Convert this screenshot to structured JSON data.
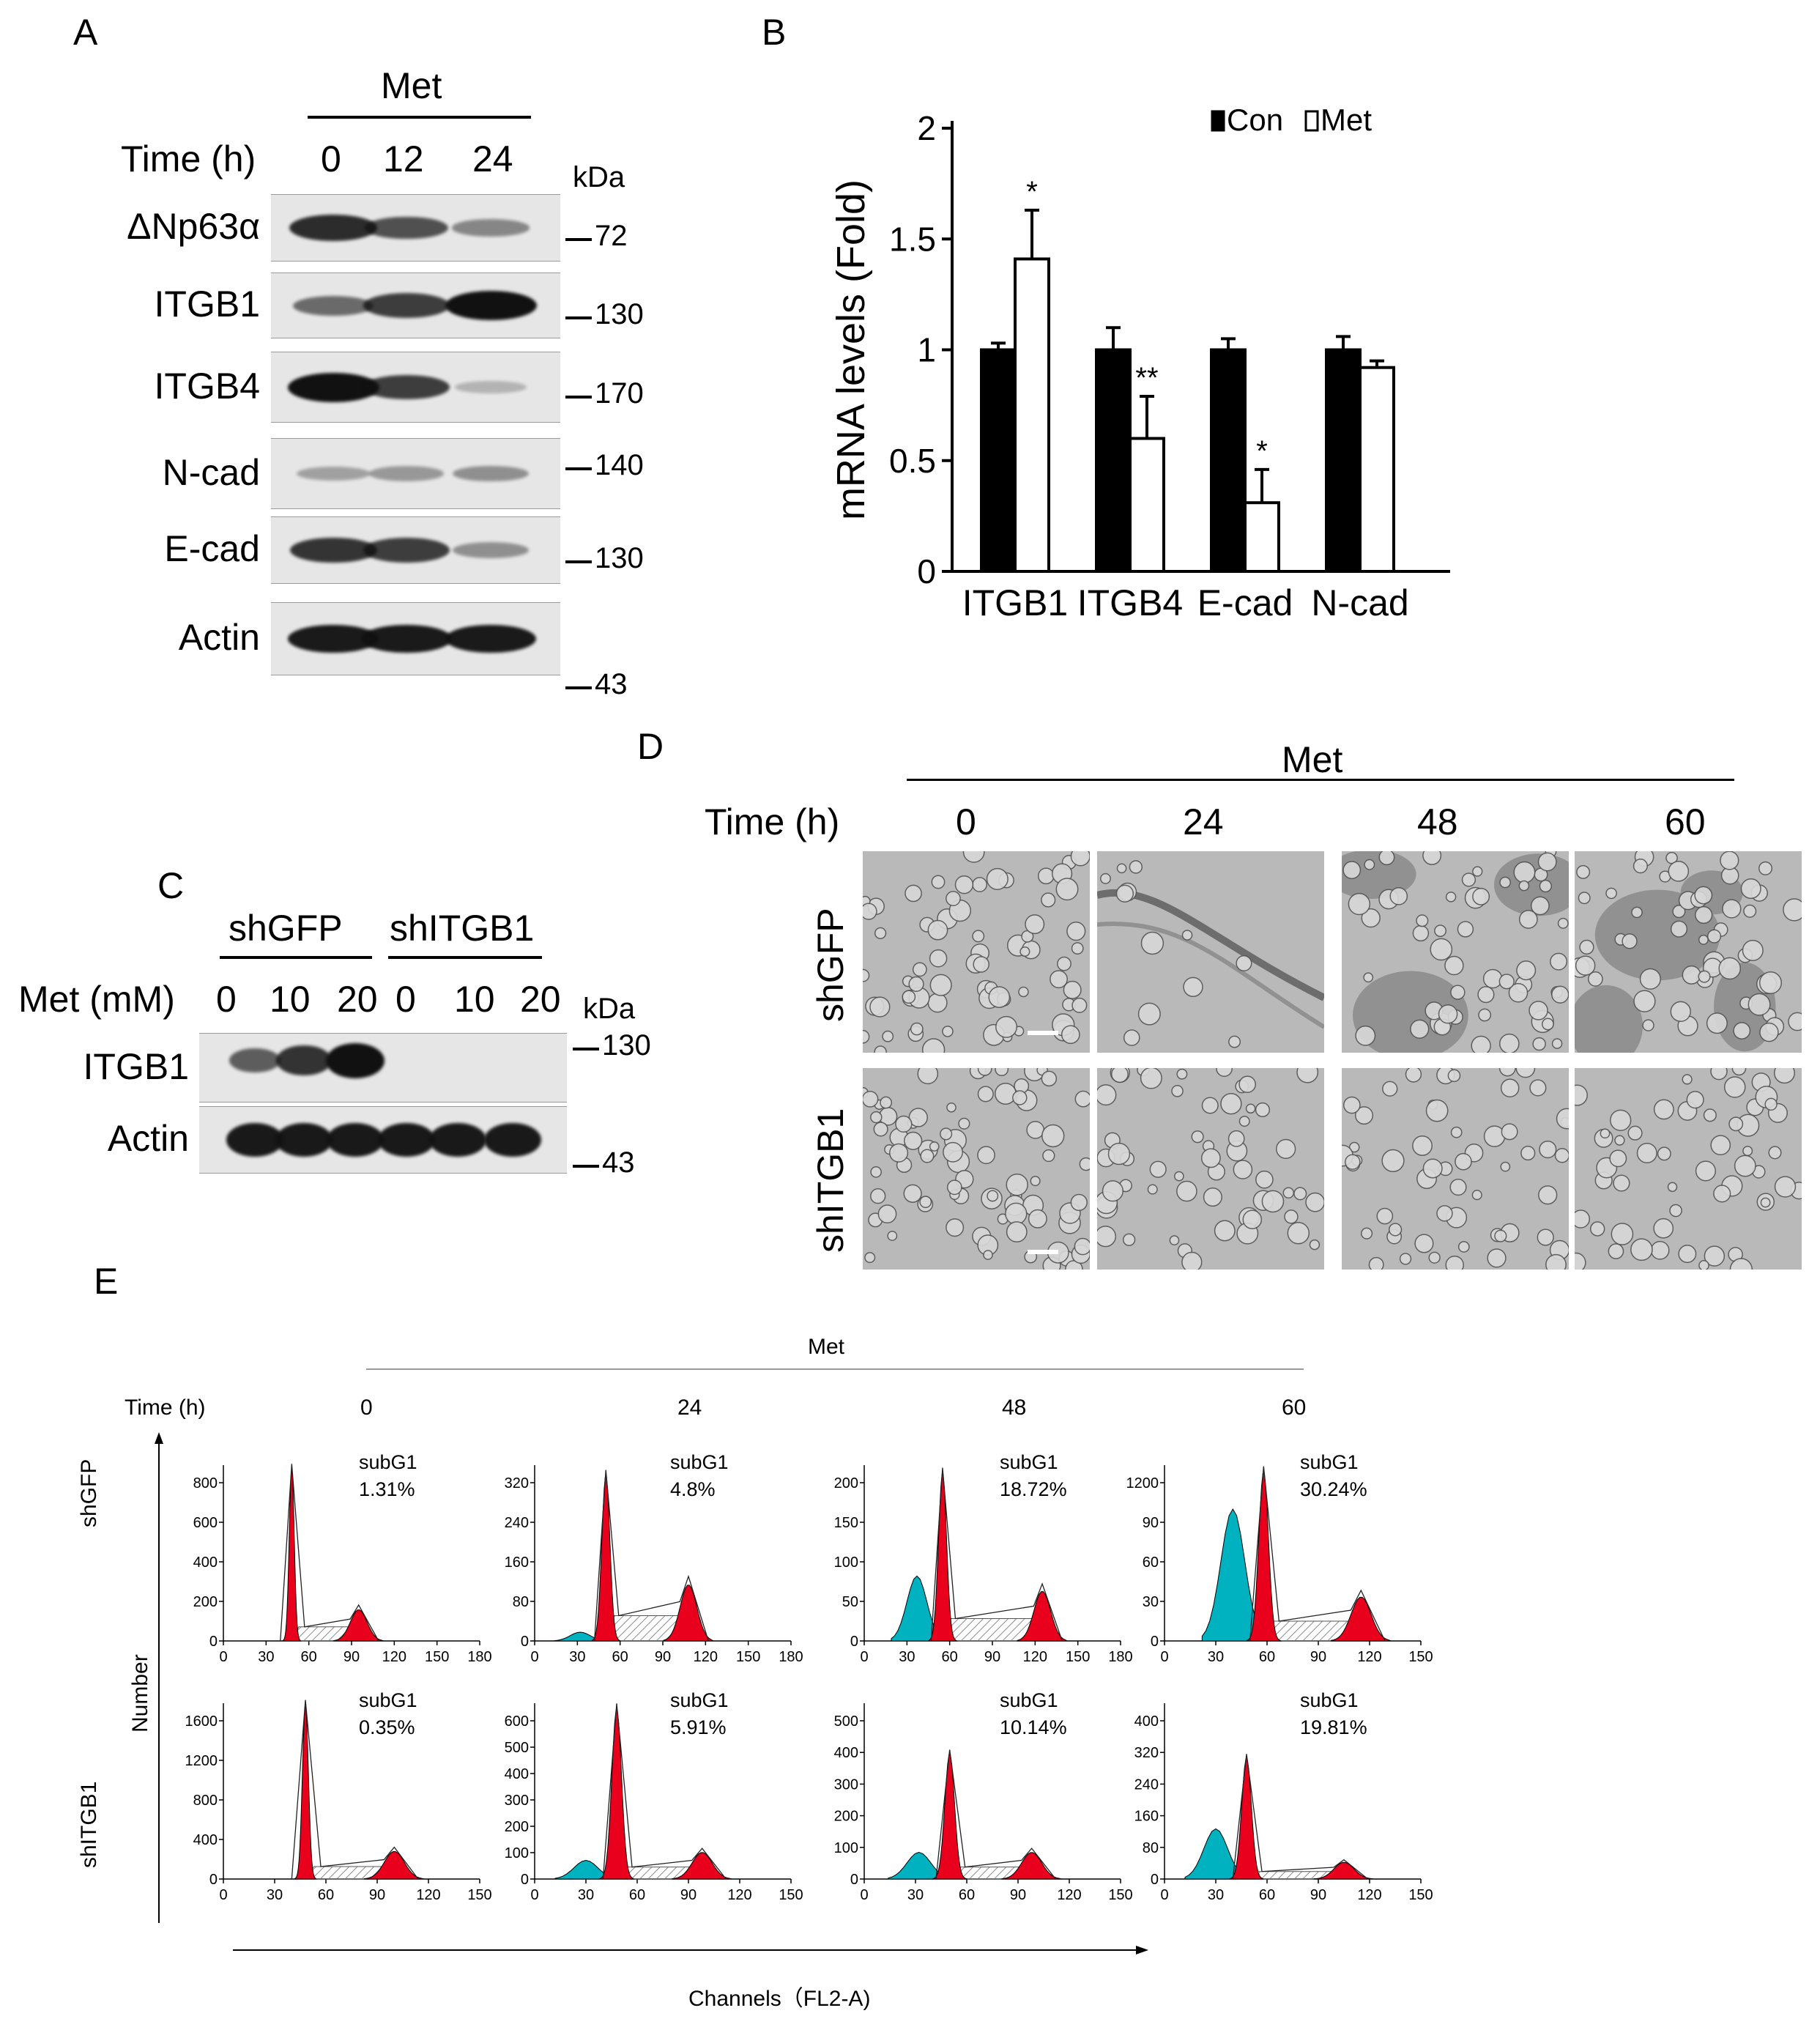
{
  "panels": {
    "A": {
      "letter": "A",
      "treatment": "Met",
      "time_label": "Time (h)",
      "time_points": [
        "0",
        "12",
        "24"
      ],
      "kda_label": "kDa",
      "rows": [
        {
          "label": "ΔNp63α",
          "marker": "72",
          "intensities": [
            0.85,
            0.65,
            0.35
          ]
        },
        {
          "label": "ITGB1",
          "marker": "130",
          "intensities": [
            0.5,
            0.75,
            1.0
          ]
        },
        {
          "label": "ITGB4",
          "marker": "170",
          "intensities": [
            1.0,
            0.75,
            0.1
          ]
        },
        {
          "label": "N-cad",
          "marker": "140",
          "intensities": [
            0.2,
            0.25,
            0.3
          ]
        },
        {
          "label": "E-cad",
          "marker": "130",
          "intensities": [
            0.8,
            0.75,
            0.3
          ]
        },
        {
          "label": "Actin",
          "marker": "43",
          "intensities": [
            0.95,
            0.95,
            0.95
          ]
        }
      ]
    },
    "B": {
      "letter": "B",
      "chart_data": {
        "type": "bar",
        "ylabel": "mRNA levels (Fold)",
        "categories": [
          "ITGB1",
          "ITGB4",
          "E-cad",
          "N-cad"
        ],
        "ylim": [
          0,
          2
        ],
        "yticks": [
          "0",
          "0.5",
          "1",
          "1.5",
          "2"
        ],
        "legend_position": "top-right",
        "series": [
          {
            "name": "Con",
            "color": "#000000",
            "values": [
              1.0,
              1.0,
              1.0,
              1.0
            ],
            "errors": [
              0.03,
              0.1,
              0.05,
              0.06
            ]
          },
          {
            "name": "Met",
            "color": "#ffffff",
            "values": [
              1.41,
              0.6,
              0.31,
              0.92
            ],
            "errors": [
              0.22,
              0.19,
              0.15,
              0.03
            ]
          }
        ],
        "annotations": [
          "*",
          "**",
          "*",
          ""
        ]
      }
    },
    "C": {
      "letter": "C",
      "groups": [
        "shGFP",
        "shITGB1"
      ],
      "met_label": "Met (mM)",
      "doses": [
        "0",
        "10",
        "20",
        "0",
        "10",
        "20"
      ],
      "kda_label": "kDa",
      "rows": [
        {
          "label": "ITGB1",
          "marker": "130",
          "intensities": [
            0.55,
            0.8,
            1.0,
            0,
            0,
            0
          ]
        },
        {
          "label": "Actin",
          "marker": "43",
          "intensities": [
            0.95,
            0.95,
            0.95,
            0.95,
            0.95,
            0.95
          ]
        }
      ]
    },
    "D": {
      "letter": "D",
      "treatment": "Met",
      "time_label": "Time (h)",
      "time_points": [
        "0",
        "24",
        "48",
        "60"
      ],
      "rows": [
        "shGFP",
        "shITGB1"
      ]
    },
    "E": {
      "letter": "E",
      "treatment": "Met",
      "time_label": "Time (h)",
      "time_points": [
        "0",
        "24",
        "48",
        "60"
      ],
      "ylabel": "Number",
      "xlabel": "Channels（FL2-A)",
      "rows": [
        "shGFP",
        "shITGB1"
      ],
      "histograms": [
        {
          "row": "shGFP",
          "time": "0",
          "label": "subG1",
          "percent": "1.31%",
          "xticks": [
            "0",
            "30",
            "60",
            "90",
            "120",
            "150",
            "180"
          ],
          "xmax": 180,
          "yticks": [
            "0",
            "200",
            "400",
            "600",
            "800"
          ],
          "ymax": 900,
          "g1": 48,
          "g2": 95,
          "subg1": 0,
          "peak": 880,
          "g2h": 160
        },
        {
          "row": "shGFP",
          "time": "24",
          "label": "subG1",
          "percent": "4.8%",
          "xticks": [
            "0",
            "30",
            "60",
            "90",
            "120",
            "150",
            "180"
          ],
          "xmax": 180,
          "yticks": [
            "0",
            "80",
            "160",
            "240",
            "320"
          ],
          "ymax": 360,
          "g1": 50,
          "g2": 108,
          "subg1": 18,
          "peak": 340,
          "g2h": 115
        },
        {
          "row": "shGFP",
          "time": "48",
          "label": "subG1",
          "percent": "18.72%",
          "xticks": [
            "0",
            "30",
            "60",
            "90",
            "120",
            "150",
            "180"
          ],
          "xmax": 180,
          "yticks": [
            "0",
            "50",
            "100",
            "150",
            "200"
          ],
          "ymax": 230,
          "g1": 55,
          "g2": 125,
          "subg1": 85,
          "peak": 220,
          "g2h": 65
        },
        {
          "row": "shGFP",
          "time": "60",
          "label": "subG1",
          "percent": "30.24%",
          "xticks": [
            "0",
            "30",
            "60",
            "90",
            "120",
            "150"
          ],
          "xmax": 150,
          "yticks": [
            "0",
            "30",
            "60",
            "90",
            "1200"
          ],
          "ymax": 140,
          "g1": 58,
          "g2": 115,
          "subg1": 105,
          "peak": 135,
          "g2h": 35
        }
      ],
      "histograms2": [
        {
          "row": "shITGB1",
          "time": "0",
          "label": "subG1",
          "percent": "0.35%",
          "xticks": [
            "0",
            "30",
            "60",
            "90",
            "120",
            "150"
          ],
          "xmax": 150,
          "yticks": [
            "0",
            "400",
            "800",
            "1200",
            "1600"
          ],
          "ymax": 1780,
          "g1": 48,
          "g2": 100,
          "subg1": 0,
          "peak": 1760,
          "g2h": 280
        },
        {
          "row": "shITGB1",
          "time": "24",
          "label": "subG1",
          "percent": "5.91%",
          "xticks": [
            "0",
            "30",
            "60",
            "90",
            "120",
            "150"
          ],
          "xmax": 150,
          "yticks": [
            "0",
            "100",
            "200",
            "300",
            "400",
            "500",
            "600"
          ],
          "ymax": 660,
          "g1": 48,
          "g2": 98,
          "subg1": 70,
          "peak": 640,
          "g2h": 100
        },
        {
          "row": "shITGB1",
          "time": "48",
          "label": "subG1",
          "percent": "10.14%",
          "xticks": [
            "0",
            "30",
            "60",
            "90",
            "120",
            "150"
          ],
          "xmax": 150,
          "yticks": [
            "0",
            "100",
            "200",
            "300",
            "400",
            "500"
          ],
          "ymax": 560,
          "g1": 50,
          "g2": 98,
          "subg1": 85,
          "peak": 400,
          "g2h": 85
        },
        {
          "row": "shITGB1",
          "time": "60",
          "label": "subG1",
          "percent": "19.81%",
          "xticks": [
            "0",
            "30",
            "60",
            "90",
            "120",
            "150"
          ],
          "xmax": 150,
          "yticks": [
            "0",
            "80",
            "160",
            "240",
            "320",
            "400"
          ],
          "ymax": 420,
          "g1": 48,
          "g2": 105,
          "subg1": 120,
          "peak": 290,
          "g2h": 40
        }
      ]
    }
  },
  "colors": {
    "g1": "#e8001c",
    "subg1": "#00b2bf",
    "hatch": "#8c8c8c"
  }
}
